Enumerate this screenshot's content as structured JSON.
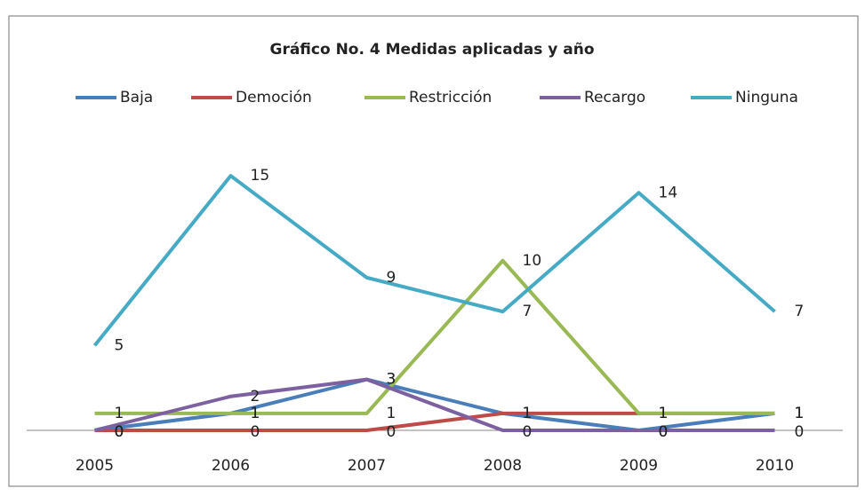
{
  "chart_data": {
    "type": "line",
    "title": "Gráfico  No. 4 Medidas aplicadas y año",
    "categories": [
      "2005",
      "2006",
      "2007",
      "2008",
      "2009",
      "2010"
    ],
    "series": [
      {
        "name": "Baja",
        "color": "#4a7ebb",
        "values": [
          0,
          1,
          3,
          1,
          0,
          1
        ]
      },
      {
        "name": "Democión",
        "color": "#be4b48",
        "values": [
          0,
          0,
          0,
          1,
          1,
          1
        ]
      },
      {
        "name": "Restricción",
        "color": "#98b954",
        "values": [
          1,
          1,
          1,
          10,
          1,
          1
        ]
      },
      {
        "name": "Recargo",
        "color": "#7d60a0",
        "values": [
          0,
          2,
          3,
          0,
          0,
          0
        ]
      },
      {
        "name": "Ninguna",
        "color": "#46aac5",
        "values": [
          5,
          15,
          9,
          7,
          14,
          7
        ]
      }
    ],
    "ylim": [
      0,
      16
    ],
    "legend": "top"
  }
}
